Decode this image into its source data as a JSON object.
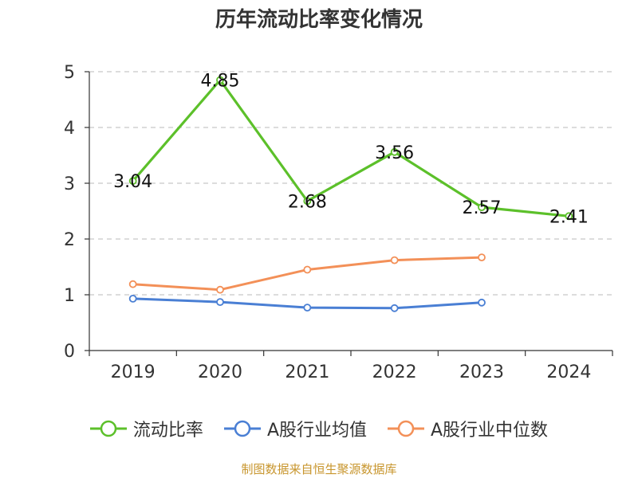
{
  "chart_data": {
    "type": "line",
    "title": "历年流动比率变化情况",
    "categories": [
      "2019",
      "2020",
      "2021",
      "2022",
      "2023",
      "2024"
    ],
    "ylim": [
      0,
      5
    ],
    "yticks": [
      0,
      1,
      2,
      3,
      4,
      5
    ],
    "grid": "horizontal-dashed",
    "legend_position": "bottom",
    "series": [
      {
        "name": "流动比率",
        "color": "#5cc02a",
        "values": [
          3.04,
          4.85,
          2.68,
          3.56,
          2.57,
          2.41
        ],
        "labels": [
          "3.04",
          "4.85",
          "2.68",
          "3.56",
          "2.57",
          "2.41"
        ]
      },
      {
        "name": "A股行业均值",
        "color": "#4a7fd4",
        "values": [
          0.93,
          0.87,
          0.77,
          0.76,
          0.86,
          null
        ]
      },
      {
        "name": "A股行业中位数",
        "color": "#f39058",
        "values": [
          1.19,
          1.09,
          1.45,
          1.62,
          1.67,
          null
        ]
      }
    ]
  },
  "source_note": "制图数据来自恒生聚源数据库"
}
